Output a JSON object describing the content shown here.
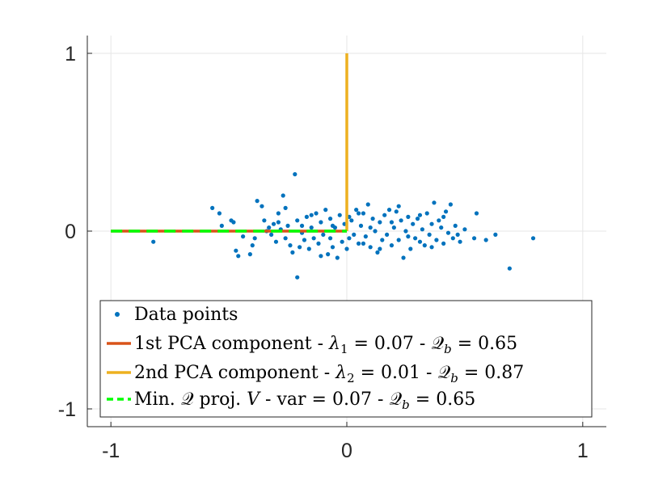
{
  "chart_data": {
    "type": "scatter",
    "title": "",
    "xlabel": "",
    "ylabel": "",
    "xlim": [
      -1.1,
      1.1
    ],
    "ylim": [
      -1.1,
      1.1
    ],
    "grid": true,
    "x_ticks": [
      -1,
      0,
      1
    ],
    "y_ticks": [
      -1,
      0,
      1
    ],
    "x_tick_labels": [
      "-1",
      "0",
      "1"
    ],
    "y_tick_labels": [
      "-1",
      "0",
      "1"
    ],
    "legend_position": "bottom-left",
    "colors": {
      "points": "#0072BD",
      "pc1": "#D95319",
      "pc2": "#EDB120",
      "minq": "#00FF00",
      "grid": "#e6e6e6",
      "axis": "#262626"
    },
    "series": [
      {
        "name": "Data points",
        "kind": "scatter",
        "legend": {
          "text": "Data points"
        },
        "points": [
          [
            -0.82,
            -0.06
          ],
          [
            -0.57,
            0.13
          ],
          [
            -0.54,
            0.1
          ],
          [
            -0.53,
            0.03
          ],
          [
            -0.49,
            0.06
          ],
          [
            -0.48,
            0.05
          ],
          [
            -0.47,
            -0.11
          ],
          [
            -0.46,
            -0.14
          ],
          [
            -0.41,
            -0.13
          ],
          [
            -0.4,
            -0.08
          ],
          [
            -0.39,
            -0.04
          ],
          [
            -0.38,
            0.17
          ],
          [
            -0.36,
            0.14
          ],
          [
            -0.35,
            0.06
          ],
          [
            -0.33,
            0.02
          ],
          [
            -0.32,
            -0.02
          ],
          [
            -0.31,
            0.04
          ],
          [
            -0.3,
            -0.06
          ],
          [
            -0.29,
            0.1
          ],
          [
            -0.28,
            0.01
          ],
          [
            -0.27,
            0.2
          ],
          [
            -0.26,
            -0.04
          ],
          [
            -0.25,
            0.03
          ],
          [
            -0.24,
            -0.08
          ],
          [
            -0.23,
            -0.12
          ],
          [
            -0.22,
            0.32
          ],
          [
            -0.21,
            0.06
          ],
          [
            -0.21,
            -0.26
          ],
          [
            -0.2,
            -0.09
          ],
          [
            -0.19,
            0.03
          ],
          [
            -0.18,
            -0.05
          ],
          [
            -0.17,
            0.08
          ],
          [
            -0.16,
            -0.1
          ],
          [
            -0.15,
            0.02
          ],
          [
            -0.14,
            -0.04
          ],
          [
            -0.13,
            0.1
          ],
          [
            -0.12,
            -0.07
          ],
          [
            -0.11,
            0.05
          ],
          [
            -0.1,
            -0.02
          ],
          [
            -0.09,
            0.12
          ],
          [
            -0.08,
            -0.13
          ],
          [
            -0.07,
            0.07
          ],
          [
            -0.06,
            -0.09
          ],
          [
            -0.05,
            0.02
          ],
          [
            -0.04,
            -0.15
          ],
          [
            -0.03,
            0.09
          ],
          [
            -0.02,
            -0.06
          ],
          [
            -0.01,
            0.04
          ],
          [
            0.0,
            -0.1
          ],
          [
            0.01,
            -0.04
          ],
          [
            0.02,
            0.06
          ],
          [
            0.03,
            -0.02
          ],
          [
            0.04,
            0.12
          ],
          [
            0.05,
            -0.07
          ],
          [
            0.06,
            0.03
          ],
          [
            0.07,
            0.1
          ],
          [
            0.08,
            -0.03
          ],
          [
            0.09,
            0.15
          ],
          [
            0.1,
            -0.09
          ],
          [
            0.11,
            0.07
          ],
          [
            0.12,
            0.0
          ],
          [
            0.13,
            -0.12
          ],
          [
            0.14,
            0.05
          ],
          [
            0.15,
            -0.05
          ],
          [
            0.16,
            0.09
          ],
          [
            0.17,
            -0.02
          ],
          [
            0.18,
            0.12
          ],
          [
            0.19,
            -0.08
          ],
          [
            0.2,
            0.02
          ],
          [
            0.21,
            0.11
          ],
          [
            0.22,
            -0.05
          ],
          [
            0.23,
            0.06
          ],
          [
            0.24,
            -0.15
          ],
          [
            0.25,
            0.0
          ],
          [
            0.26,
            0.08
          ],
          [
            0.27,
            -0.1
          ],
          [
            0.28,
            0.04
          ],
          [
            0.29,
            -0.04
          ],
          [
            0.3,
            0.07
          ],
          [
            0.31,
            -0.06
          ],
          [
            0.32,
            0.01
          ],
          [
            0.33,
            -0.08
          ],
          [
            0.34,
            0.1
          ],
          [
            0.35,
            -0.02
          ],
          [
            0.36,
            0.04
          ],
          [
            0.37,
            0.16
          ],
          [
            0.38,
            -0.05
          ],
          [
            0.39,
            0.06
          ],
          [
            0.4,
            0.02
          ],
          [
            0.41,
            -0.07
          ],
          [
            0.42,
            0.11
          ],
          [
            0.43,
            -0.01
          ],
          [
            0.44,
            0.15
          ],
          [
            0.45,
            -0.04
          ],
          [
            0.46,
            0.03
          ],
          [
            0.48,
            -0.06
          ],
          [
            0.5,
            0.01
          ],
          [
            0.54,
            -0.04
          ],
          [
            0.55,
            0.1
          ],
          [
            0.59,
            -0.05
          ],
          [
            0.63,
            -0.02
          ],
          [
            0.69,
            -0.21
          ],
          [
            0.79,
            -0.04
          ],
          [
            -0.44,
            -0.03
          ],
          [
            -0.34,
            0.0
          ],
          [
            -0.26,
            0.13
          ],
          [
            -0.19,
            -0.01
          ],
          [
            -0.11,
            -0.14
          ],
          [
            -0.06,
            0.03
          ],
          [
            0.01,
            0.08
          ],
          [
            0.07,
            -0.07
          ],
          [
            0.14,
            -0.1
          ],
          [
            0.19,
            0.05
          ],
          [
            0.26,
            -0.03
          ],
          [
            0.31,
            0.09
          ],
          [
            0.36,
            -0.09
          ],
          [
            0.41,
            0.08
          ],
          [
            0.47,
            -0.02
          ],
          [
            -0.15,
            0.09
          ],
          [
            0.1,
            0.02
          ],
          [
            0.22,
            0.14
          ],
          [
            -0.29,
            0.05
          ],
          [
            0.05,
            0.1
          ],
          [
            -0.07,
            -0.04
          ]
        ]
      },
      {
        "name": "1st PCA component",
        "kind": "line",
        "legend": {
          "text": "1st PCA component - λ₁ = 0.07 - 𝒬b = 0.65",
          "prefix": "1st PCA component - ",
          "lambda_sub": "1",
          "lambda_value": "0.07",
          "q_value": "0.65"
        },
        "x": [
          -1,
          0
        ],
        "y": [
          0,
          0
        ]
      },
      {
        "name": "2nd PCA component",
        "kind": "line",
        "legend": {
          "text": "2nd PCA component - λ₂ = 0.01 - 𝒬b = 0.87",
          "prefix": "2nd PCA component - ",
          "lambda_sub": "2",
          "lambda_value": "0.01",
          "q_value": "0.87"
        },
        "x": [
          0,
          0
        ],
        "y": [
          0,
          1
        ]
      },
      {
        "name": "Min. Q proj. V",
        "kind": "dashed-line",
        "legend": {
          "text": "Min. 𝒬 proj. V - var = 0.07 - 𝒬b = 0.65",
          "prefix": "Min. ",
          "mid": " proj. ",
          "var_label": " - var = 0.07 - ",
          "q_value": "0.65"
        },
        "x": [
          -1,
          0
        ],
        "y": [
          0,
          0
        ]
      }
    ]
  }
}
